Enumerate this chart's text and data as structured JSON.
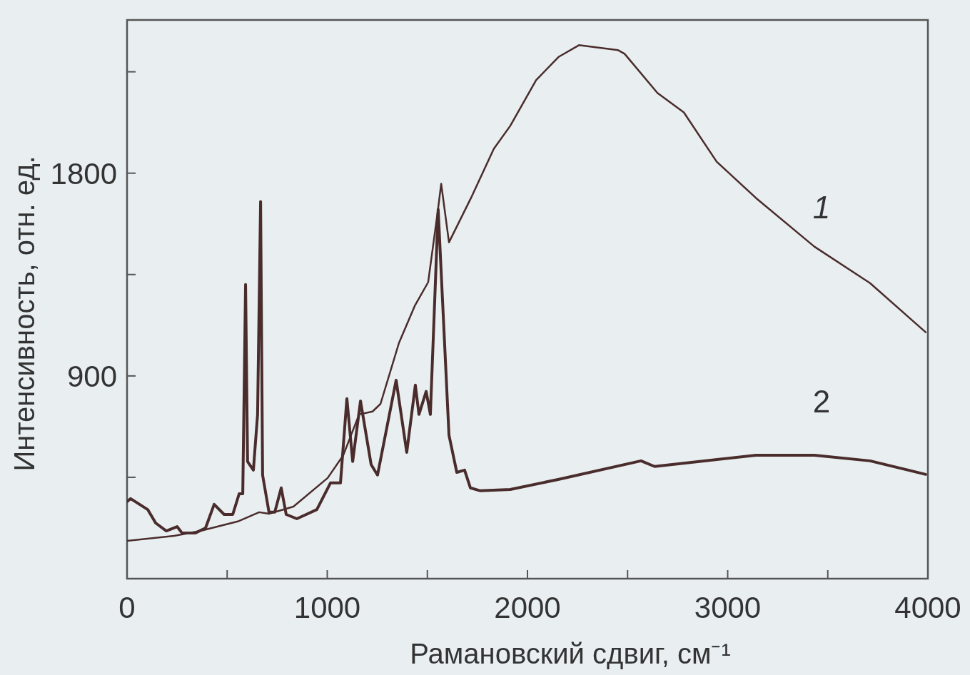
{
  "chart_data": {
    "type": "line",
    "xlabel": "Рамановский сдвиг, см⁻¹",
    "ylabel": "Интенсивность, отн. ед.",
    "xlim": [
      0,
      4000
    ],
    "ylim": [
      0,
      2480
    ],
    "xticks": [
      0,
      {
        "value": 500,
        "label": null
      },
      1000,
      {
        "value": 1500,
        "label": null
      },
      2000,
      {
        "value": 2500,
        "label": null
      },
      3000,
      {
        "value": 3500,
        "label": null
      },
      4000
    ],
    "yticks": [
      {
        "value": 450,
        "label": null
      },
      900,
      {
        "value": 1350,
        "label": null
      },
      1800,
      {
        "value": 2250,
        "label": null
      }
    ],
    "grid": false,
    "marker": "none",
    "line_style": "solid",
    "series": [
      {
        "name": "1",
        "color": "#4a2c2c",
        "x": [
          0,
          235,
          367,
          553,
          660,
          709,
          831,
          1002,
          1080,
          1159,
          1226,
          1266,
          1358,
          1437,
          1504,
          1554,
          1569,
          1608,
          1718,
          1832,
          1914,
          2043,
          2157,
          2257,
          2453,
          2485,
          2649,
          2781,
          2945,
          3141,
          3433,
          3711,
          3989
        ],
        "values": [
          168,
          190,
          212,
          254,
          295,
          288,
          320,
          447,
          548,
          729,
          742,
          776,
          1046,
          1211,
          1316,
          1645,
          1753,
          1493,
          1690,
          1908,
          2010,
          2213,
          2317,
          2368,
          2346,
          2330,
          2156,
          2070,
          1851,
          1690,
          1474,
          1312,
          1094
        ]
      },
      {
        "name": "2",
        "color": "#4a2c2c",
        "x": [
          0,
          18,
          103,
          143,
          196,
          250,
          274,
          342,
          392,
          435,
          485,
          528,
          560,
          578,
          592,
          602,
          631,
          652,
          667,
          677,
          709,
          738,
          770,
          795,
          848,
          895,
          948,
          1016,
          1066,
          1098,
          1127,
          1166,
          1219,
          1251,
          1344,
          1397,
          1440,
          1458,
          1494,
          1515,
          1554,
          1608,
          1647,
          1686,
          1715,
          1765,
          1914,
          2157,
          2567,
          2635,
          3141,
          3433,
          3711,
          3989
        ],
        "values": [
          342,
          355,
          307,
          247,
          212,
          231,
          203,
          203,
          225,
          330,
          285,
          285,
          377,
          377,
          1306,
          520,
          482,
          729,
          1674,
          460,
          295,
          295,
          403,
          285,
          266,
          285,
          307,
          425,
          425,
          799,
          520,
          789,
          507,
          460,
          881,
          561,
          859,
          729,
          831,
          729,
          1639,
          637,
          472,
          482,
          403,
          390,
          396,
          441,
          523,
          498,
          548,
          548,
          523,
          463
        ]
      }
    ]
  }
}
